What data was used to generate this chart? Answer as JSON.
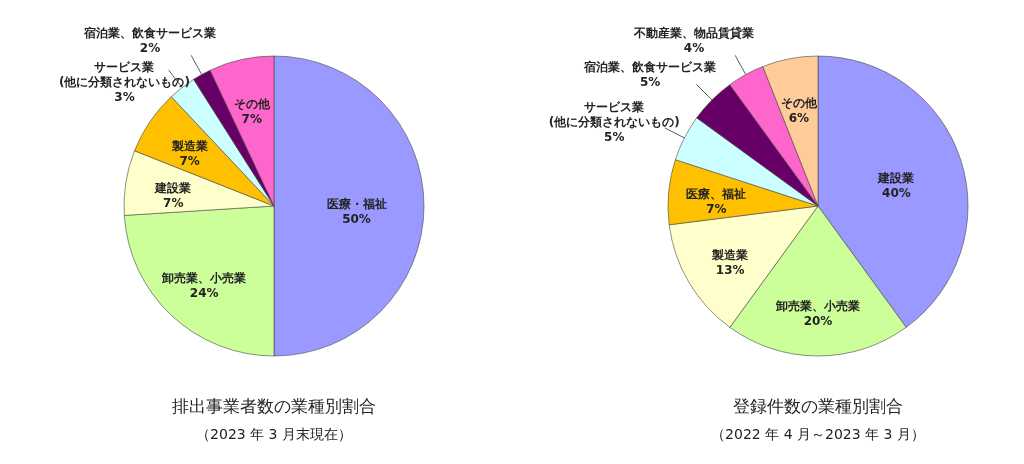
{
  "chart_data": [
    {
      "type": "pie",
      "title": "排出事業者数の業種別割合",
      "subtitle": "（2023 年 3 月末現在）",
      "categories": [
        "医療・福祉",
        "卸売業、小売業",
        "建設業",
        "製造業",
        "サービス業\n(他に分類されないもの)",
        "宿泊業、飲食サービス業",
        "その他"
      ],
      "values": [
        50,
        24,
        7,
        7,
        3,
        2,
        7
      ],
      "value_labels": [
        "50%",
        "24%",
        "7%",
        "7%",
        "3%",
        "2%",
        "7%"
      ],
      "colors": [
        "#9999ff",
        "#ccff99",
        "#ffffcc",
        "#ffc000",
        "#ccffff",
        "#660066",
        "#ff66cc"
      ]
    },
    {
      "type": "pie",
      "title": "登録件数の業種別割合",
      "subtitle": "（2022 年 4 月～2023 年 3 月）",
      "categories": [
        "建設業",
        "卸売業、小売業",
        "製造業",
        "医療、福祉",
        "サービス業\n(他に分類されないもの)",
        "宿泊業、飲食サービス業",
        "不動産業、物品賃貸業",
        "その他"
      ],
      "values": [
        40,
        20,
        13,
        7,
        5,
        5,
        4,
        6
      ],
      "value_labels": [
        "40%",
        "20%",
        "13%",
        "7%",
        "5%",
        "5%",
        "4%",
        "6%"
      ],
      "colors": [
        "#9999ff",
        "#ccff99",
        "#ffffcc",
        "#ffc000",
        "#ccffff",
        "#660066",
        "#ff66cc",
        "#ffcc99"
      ]
    }
  ]
}
